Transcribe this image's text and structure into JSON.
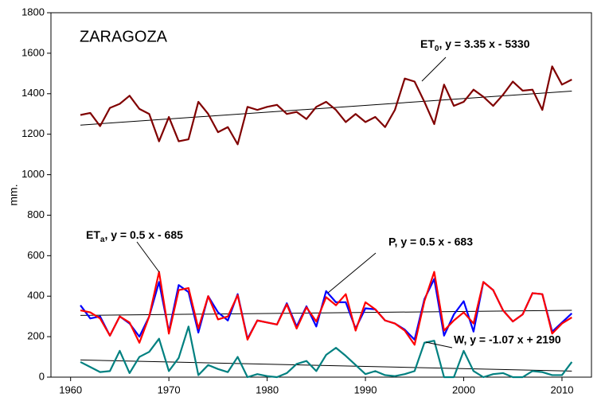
{
  "chart_data": {
    "type": "line",
    "title": "ZARAGOZA",
    "ylabel": "mm.",
    "x": [
      1961,
      1962,
      1963,
      1964,
      1965,
      1966,
      1967,
      1968,
      1969,
      1970,
      1971,
      1972,
      1973,
      1974,
      1975,
      1976,
      1977,
      1978,
      1979,
      1980,
      1981,
      1982,
      1983,
      1984,
      1985,
      1986,
      1987,
      1988,
      1989,
      1990,
      1991,
      1992,
      1993,
      1994,
      1995,
      1996,
      1997,
      1998,
      1999,
      2000,
      2001,
      2002,
      2003,
      2004,
      2005,
      2006,
      2007,
      2008,
      2009,
      2010,
      2011
    ],
    "series": [
      {
        "color": "#800000",
        "values": [
          1295,
          1305,
          1240,
          1330,
          1350,
          1390,
          1325,
          1300,
          1165,
          1285,
          1165,
          1175,
          1360,
          1300,
          1210,
          1235,
          1150,
          1335,
          1320,
          1335,
          1345,
          1300,
          1310,
          1275,
          1335,
          1360,
          1320,
          1260,
          1300,
          1260,
          1285,
          1235,
          1320,
          1475,
          1460,
          1360,
          1250,
          1445,
          1340,
          1360,
          1420,
          1385,
          1340,
          1395,
          1460,
          1415,
          1420,
          1320,
          1535,
          1445,
          1470
        ]
      },
      {
        "color": "#0000ff",
        "values": [
          355,
          290,
          300,
          205,
          300,
          265,
          200,
          300,
          470,
          225,
          455,
          420,
          220,
          400,
          320,
          280,
          410,
          190,
          280,
          270,
          260,
          365,
          250,
          350,
          250,
          425,
          370,
          370,
          240,
          340,
          335,
          280,
          265,
          235,
          185,
          385,
          485,
          205,
          310,
          375,
          225,
          470,
          430,
          330,
          275,
          310,
          415,
          410,
          225,
          270,
          315
        ]
      },
      {
        "color": "#ff0000",
        "values": [
          330,
          320,
          290,
          205,
          300,
          270,
          170,
          300,
          520,
          215,
          430,
          440,
          240,
          400,
          285,
          300,
          405,
          185,
          280,
          270,
          260,
          360,
          240,
          345,
          275,
          395,
          355,
          410,
          230,
          370,
          335,
          280,
          265,
          230,
          160,
          375,
          520,
          230,
          280,
          320,
          265,
          470,
          430,
          330,
          275,
          310,
          415,
          410,
          215,
          265,
          295
        ]
      },
      {
        "color": "#008080",
        "values": [
          75,
          50,
          25,
          30,
          130,
          20,
          100,
          125,
          190,
          30,
          95,
          250,
          10,
          60,
          40,
          25,
          100,
          0,
          15,
          5,
          0,
          20,
          65,
          80,
          30,
          110,
          145,
          105,
          60,
          15,
          30,
          10,
          5,
          15,
          30,
          170,
          180,
          0,
          0,
          130,
          30,
          0,
          15,
          20,
          0,
          0,
          30,
          25,
          10,
          10,
          75
        ]
      }
    ],
    "trendlines": [
      {
        "color": "#000000",
        "x": [
          1961,
          2011
        ],
        "values": [
          1245,
          1413
        ]
      },
      {
        "color": "#000000",
        "x": [
          1961,
          2011
        ],
        "values": [
          305,
          330
        ]
      },
      {
        "color": "#000000",
        "x": [
          1961,
          2011
        ],
        "values": [
          85,
          30
        ]
      }
    ],
    "annotations": [
      {
        "text": "ET",
        "sub": "0",
        "text2": ", y = 3.35 x - 5330"
      },
      {
        "text": "ET",
        "sub": "a",
        "text2": ", y = 0.5 x - 685"
      },
      {
        "text": "P, y = 0.5 x - 683"
      },
      {
        "text": "W, y = -1.07 x + 2190"
      }
    ],
    "xlim": [
      1958,
      2013
    ],
    "ylim": [
      0,
      1800
    ],
    "xticks": [
      1960,
      1970,
      1980,
      1990,
      2000,
      2010
    ],
    "yticks": [
      0,
      200,
      400,
      600,
      800,
      1000,
      1200,
      1400,
      1600,
      1800
    ],
    "grid": false
  }
}
